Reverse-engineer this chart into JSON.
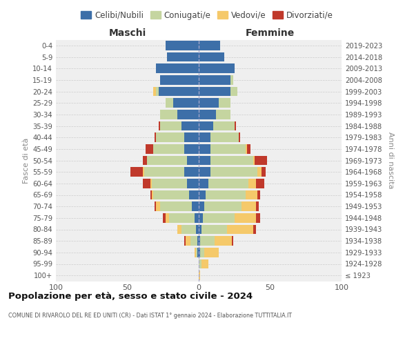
{
  "age_groups": [
    "100+",
    "95-99",
    "90-94",
    "85-89",
    "80-84",
    "75-79",
    "70-74",
    "65-69",
    "60-64",
    "55-59",
    "50-54",
    "45-49",
    "40-44",
    "35-39",
    "30-34",
    "25-29",
    "20-24",
    "15-19",
    "10-14",
    "5-9",
    "0-4"
  ],
  "birth_years": [
    "≤ 1923",
    "1924-1928",
    "1929-1933",
    "1934-1938",
    "1939-1943",
    "1944-1948",
    "1949-1953",
    "1954-1958",
    "1959-1963",
    "1964-1968",
    "1969-1973",
    "1974-1978",
    "1979-1983",
    "1984-1988",
    "1989-1993",
    "1994-1998",
    "1999-2003",
    "2004-2008",
    "2009-2013",
    "2014-2018",
    "2019-2023"
  ],
  "colors": {
    "celibi": "#3d6fa8",
    "coniugati": "#c5d5a0",
    "vedovi": "#f5c96a",
    "divorziati": "#c0392b"
  },
  "maschi": {
    "celibi": [
      0,
      0,
      1,
      1,
      2,
      3,
      5,
      7,
      8,
      10,
      8,
      10,
      10,
      12,
      15,
      18,
      28,
      27,
      30,
      22,
      23
    ],
    "coniugati": [
      0,
      0,
      1,
      5,
      10,
      18,
      22,
      25,
      25,
      28,
      28,
      22,
      20,
      15,
      12,
      5,
      2,
      0,
      0,
      0,
      0
    ],
    "vedovi": [
      0,
      0,
      1,
      3,
      3,
      2,
      3,
      1,
      1,
      1,
      0,
      0,
      0,
      0,
      0,
      0,
      2,
      0,
      0,
      0,
      0
    ],
    "divorziati": [
      0,
      0,
      0,
      1,
      0,
      2,
      1,
      1,
      5,
      9,
      3,
      5,
      1,
      1,
      0,
      0,
      0,
      0,
      0,
      0,
      0
    ]
  },
  "femmine": {
    "celibi": [
      0,
      0,
      1,
      1,
      2,
      3,
      4,
      5,
      7,
      8,
      8,
      8,
      8,
      10,
      12,
      14,
      22,
      22,
      25,
      18,
      15
    ],
    "coniugati": [
      0,
      2,
      3,
      10,
      18,
      22,
      26,
      28,
      28,
      33,
      30,
      25,
      20,
      15,
      10,
      8,
      5,
      2,
      0,
      0,
      0
    ],
    "vedovi": [
      1,
      5,
      10,
      12,
      18,
      15,
      10,
      8,
      5,
      3,
      1,
      1,
      0,
      0,
      0,
      0,
      0,
      0,
      0,
      0,
      0
    ],
    "divorziati": [
      0,
      0,
      0,
      1,
      2,
      3,
      2,
      2,
      6,
      3,
      9,
      2,
      1,
      1,
      0,
      0,
      0,
      0,
      0,
      0,
      0
    ]
  },
  "xlim": 100,
  "title": "Popolazione per età, sesso e stato civile - 2024",
  "subtitle": "COMUNE DI RIVAROLO DEL RE ED UNITI (CR) - Dati ISTAT 1° gennaio 2024 - Elaborazione TUTTITALIA.IT",
  "ylabel_left": "Fasce di età",
  "ylabel_right": "Anni di nascita",
  "xlabel_left": "Maschi",
  "xlabel_right": "Femmine",
  "legend_labels": [
    "Celibi/Nubili",
    "Coniugati/e",
    "Vedovi/e",
    "Divorziati/e"
  ],
  "background_color": "#efefef"
}
